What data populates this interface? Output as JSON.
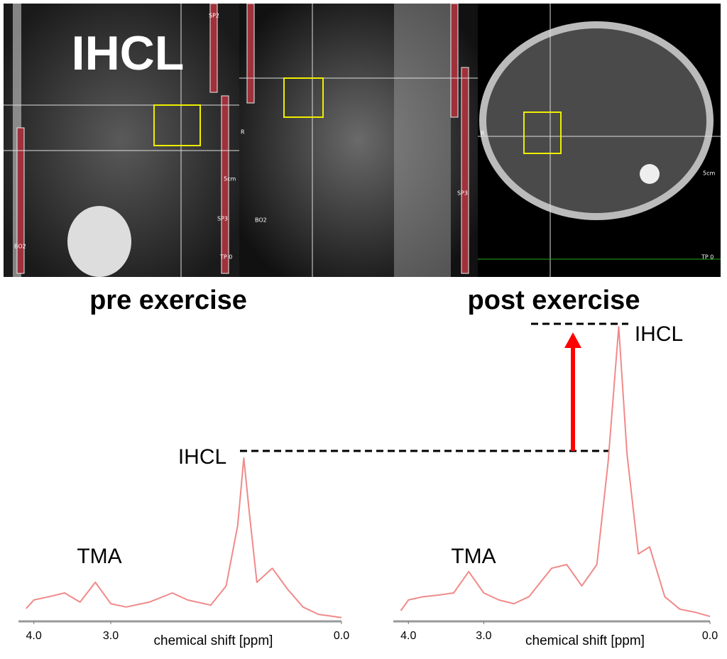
{
  "mri": {
    "label": "IHCL",
    "overlays": [
      "SP2",
      "SP3",
      "BO2",
      "SP3",
      "BO2",
      "R",
      "R",
      "5cm",
      "5cm",
      "TP 0",
      "TP 0"
    ]
  },
  "chart_data": [
    {
      "type": "line",
      "title": "pre exercise",
      "x_label": "chemical shift [ppm]",
      "xlim": [
        4.2,
        0
      ],
      "ylim": [
        0,
        100
      ],
      "xticks": [
        {
          "value": 4,
          "label": "4.0"
        },
        {
          "value": 3,
          "label": "3.0"
        },
        {
          "value": 0,
          "label": "0.0"
        }
      ],
      "annotations": [
        "TMA",
        "IHCL"
      ],
      "color": "#f08a8a",
      "x": [
        4.1,
        4.0,
        3.8,
        3.6,
        3.4,
        3.2,
        3.0,
        2.8,
        2.5,
        2.2,
        2.0,
        1.7,
        1.5,
        1.35,
        1.27,
        1.2,
        1.1,
        0.9,
        0.7,
        0.5,
        0.3,
        0.1,
        0.0
      ],
      "values": [
        4.2,
        7,
        8.1,
        9.3,
        6.3,
        12.8,
        5.8,
        4.7,
        6.3,
        9.3,
        7,
        5.3,
        11.6,
        31.4,
        53.5,
        36,
        12.8,
        17.4,
        10.5,
        4.7,
        2.3,
        1.6,
        1.2
      ]
    },
    {
      "type": "line",
      "title": "post exercise",
      "x_label": "chemical shift [ppm]",
      "xlim": [
        4.2,
        0
      ],
      "ylim": [
        0,
        100
      ],
      "xticks": [
        {
          "value": 4,
          "label": "4.0"
        },
        {
          "value": 3,
          "label": "3.0"
        },
        {
          "value": 0,
          "label": "0.0"
        }
      ],
      "annotations": [
        "TMA",
        "IHCL"
      ],
      "color": "#f08a8a",
      "x": [
        4.1,
        4.0,
        3.8,
        3.6,
        3.4,
        3.2,
        3.0,
        2.8,
        2.6,
        2.4,
        2.1,
        1.9,
        1.7,
        1.5,
        1.35,
        1.21,
        1.1,
        0.95,
        0.8,
        0.6,
        0.4,
        0.2,
        0.0
      ],
      "values": [
        3.5,
        7,
        8.1,
        8.6,
        9.3,
        16.3,
        9.3,
        7,
        5.8,
        8.1,
        17.4,
        18.6,
        11.6,
        18.6,
        52.3,
        96.5,
        54.7,
        22.1,
        24.4,
        8.1,
        4,
        3,
        1.6
      ]
    }
  ]
}
